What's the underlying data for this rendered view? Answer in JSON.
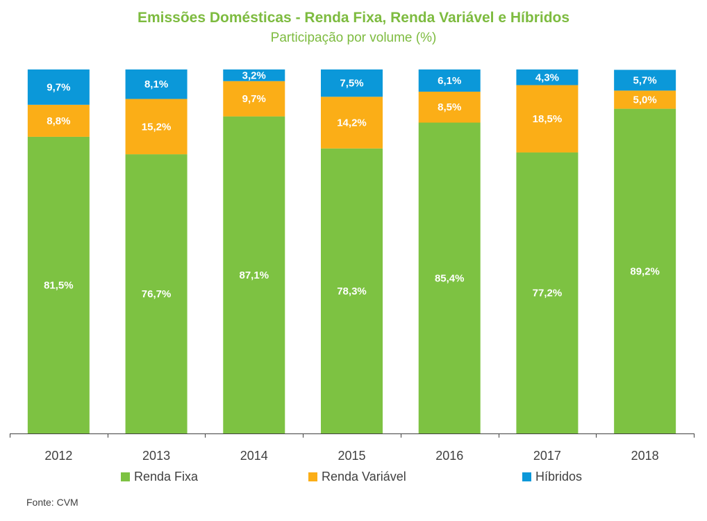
{
  "chart_data": {
    "type": "bar",
    "stacked": true,
    "title": "Emissões Domésticas - Renda Fixa, Renda Variável e Híbridos",
    "subtitle": "Participação por volume (%)",
    "xlabel": "",
    "ylabel": "",
    "ylim": [
      0,
      100
    ],
    "grid": false,
    "legend_position": "bottom",
    "categories": [
      "2012",
      "2013",
      "2014",
      "2015",
      "2016",
      "2017",
      "2018"
    ],
    "series": [
      {
        "name": "Renda Fixa",
        "color": "#7DC242",
        "values": [
          81.5,
          76.7,
          87.1,
          78.3,
          85.4,
          77.2,
          89.2
        ],
        "labels": [
          "81,5%",
          "76,7%",
          "87,1%",
          "78,3%",
          "85,4%",
          "77,2%",
          "89,2%"
        ]
      },
      {
        "name": "Renda Variável",
        "color": "#FBAE17",
        "values": [
          8.8,
          15.2,
          9.7,
          14.2,
          8.5,
          18.5,
          5.0
        ],
        "labels": [
          "8,8%",
          "15,2%",
          "9,7%",
          "14,2%",
          "8,5%",
          "18,5%",
          "5,0%"
        ]
      },
      {
        "name": "Híbridos",
        "color": "#0B98D9",
        "values": [
          9.7,
          8.1,
          3.2,
          7.5,
          6.1,
          4.3,
          5.7
        ],
        "labels": [
          "9,7%",
          "8,1%",
          "3,2%",
          "7,5%",
          "6,1%",
          "4,3%",
          "5,7%"
        ]
      }
    ],
    "source": "Fonte: CVM"
  }
}
